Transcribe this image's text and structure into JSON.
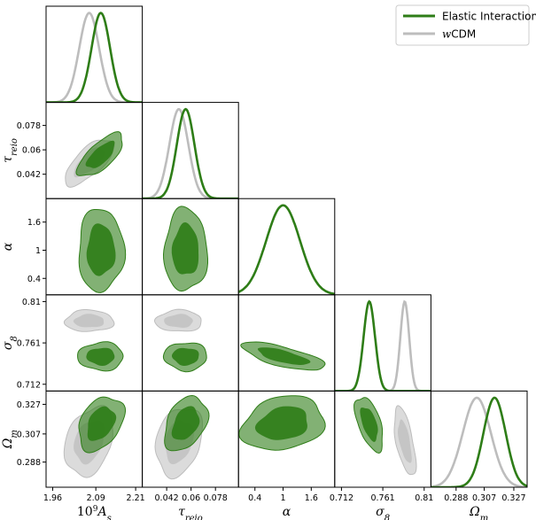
{
  "chart_data": {
    "type": "triangle-corner",
    "title": "",
    "legend": {
      "placement": "top-right",
      "entries": [
        {
          "label": "Elastic Interaction",
          "color": "#2e7d17"
        },
        {
          "label": "wCDM",
          "label_italic": "w",
          "label_rest": "CDM",
          "color": "#bdbdbd"
        }
      ]
    },
    "parameters": [
      {
        "id": "As",
        "label_main": "10",
        "label_sup": "9",
        "label_var": "A",
        "label_sub": "s",
        "range": [
          1.94,
          2.23
        ],
        "ticks": [
          1.96,
          2.09,
          2.21
        ],
        "tick_labels": [
          "1.96",
          "2.09",
          "2.21"
        ]
      },
      {
        "id": "tau",
        "label_main": "τ",
        "label_sub": "reio",
        "range": [
          0.024,
          0.095
        ],
        "ticks": [
          0.042,
          0.06,
          0.078
        ],
        "tick_labels": [
          "0.042",
          "0.06",
          "0.078"
        ]
      },
      {
        "id": "alpha",
        "label_main": "α",
        "label_sub": "",
        "range": [
          0.05,
          2.1
        ],
        "ticks": [
          0.4,
          1,
          1.6
        ],
        "tick_labels": [
          "0.4",
          "1",
          "1.6"
        ]
      },
      {
        "id": "s8",
        "label_main": "σ",
        "label_sub": "8",
        "range": [
          0.704,
          0.818
        ],
        "ticks": [
          0.712,
          0.761,
          0.81
        ],
        "tick_labels": [
          "0.712",
          "0.761",
          "0.81"
        ]
      },
      {
        "id": "om",
        "label_main": "Ω",
        "label_sub": "m",
        "range": [
          0.271,
          0.336
        ],
        "ticks": [
          0.288,
          0.307,
          0.327
        ],
        "tick_labels": [
          "0.288",
          "0.307",
          "0.327"
        ]
      }
    ],
    "series": [
      {
        "name": "Elastic Interaction",
        "color": "#2e7d17",
        "mean": {
          "As": 2.105,
          "tau": 0.056,
          "alpha": 1.0,
          "s8": 0.745,
          "om": 0.314
        },
        "sigma": {
          "As": 0.028,
          "tau": 0.0065,
          "alpha": 0.36,
          "s8": 0.0068,
          "om": 0.0075
        },
        "corr": [
          [
            "As",
            "tau",
            0.7
          ],
          [
            "As",
            "om",
            0.35
          ],
          [
            "tau",
            "om",
            0.35
          ],
          [
            "alpha",
            "s8",
            -0.7
          ],
          [
            "s8",
            "om",
            -0.55
          ],
          [
            "alpha",
            "om",
            0.2
          ]
        ]
      },
      {
        "name": "wCDM",
        "color": "#bdbdbd",
        "mean": {
          "As": 2.07,
          "tau": 0.051,
          "s8": 0.787,
          "om": 0.302
        },
        "sigma": {
          "As": 0.03,
          "tau": 0.007,
          "s8": 0.0052,
          "om": 0.0095
        },
        "corr": [
          [
            "As",
            "tau",
            0.7
          ],
          [
            "As",
            "om",
            0.3
          ],
          [
            "tau",
            "om",
            0.25
          ],
          [
            "s8",
            "om",
            -0.6
          ]
        ]
      }
    ]
  }
}
